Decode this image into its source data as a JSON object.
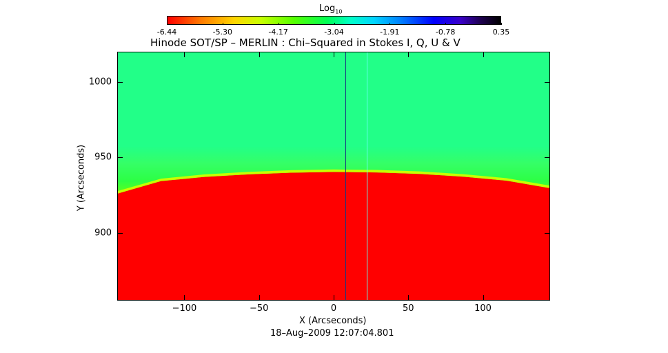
{
  "colorbar": {
    "title": "Log",
    "title_sub": "10",
    "tick_labels": [
      "-6.44",
      "-5.30",
      "-4.17",
      "-3.04",
      "-1.91",
      "-0.78",
      "0.35"
    ],
    "range": [
      -6.44,
      0.35
    ]
  },
  "chart_data": {
    "type": "heatmap",
    "title": "Hinode SOT/SP – MERLIN : Chi–Squared in Stokes I, Q, U & V",
    "xlabel": "X (Arcseconds)",
    "ylabel": "Y (Arcseconds)",
    "xlim": [
      -145,
      145
    ],
    "ylim": [
      855,
      1020
    ],
    "x_ticks": [
      -100,
      -50,
      0,
      50,
      100
    ],
    "x_tick_labels": [
      "−100",
      "−50",
      "0",
      "50",
      "100"
    ],
    "y_ticks": [
      900,
      950,
      1000
    ],
    "y_tick_labels": [
      "900",
      "950",
      "1000"
    ],
    "limb_y_center": 938,
    "limb_y_edge": 927,
    "disk_log10_value": -6.44,
    "off_limb_log10_value": -3.0,
    "seam_x": [
      8,
      22
    ],
    "timestamp": "18–Aug–2009 12:07:04.801"
  }
}
